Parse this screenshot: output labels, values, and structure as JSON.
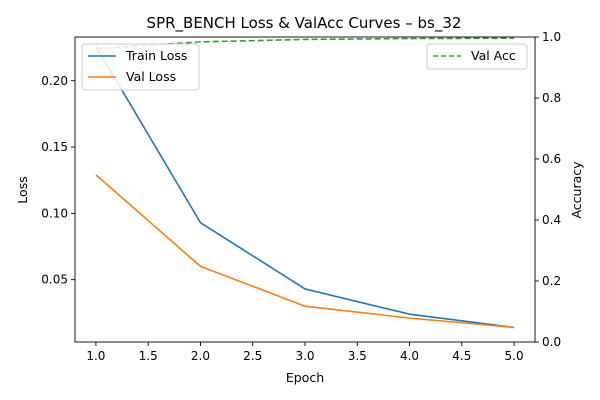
{
  "chart_data": {
    "type": "line",
    "title": "SPR_BENCH Loss & ValAcc Curves – bs_32",
    "xlabel": "Epoch",
    "ylabel_left": "Loss",
    "ylabel_right": "Accuracy",
    "x": [
      1.0,
      2.0,
      3.0,
      4.0,
      5.0
    ],
    "xlim": [
      0.8,
      5.2
    ],
    "ylim_left": [
      0.003,
      0.233
    ],
    "ylim_right": [
      0.0,
      1.0
    ],
    "xticks": [
      "1.0",
      "1.5",
      "2.0",
      "2.5",
      "3.0",
      "3.5",
      "4.0",
      "4.5",
      "5.0"
    ],
    "yticks_left": [
      "0.05",
      "0.10",
      "0.15",
      "0.20"
    ],
    "yticks_right": [
      "0.0",
      "0.2",
      "0.4",
      "0.6",
      "0.8",
      "1.0"
    ],
    "series": [
      {
        "name": "Train Loss",
        "axis": "left",
        "color": "#1f77b4",
        "style": "solid",
        "values": [
          0.226,
          0.093,
          0.043,
          0.024,
          0.014
        ]
      },
      {
        "name": "Val Loss",
        "axis": "left",
        "color": "#ff7f0e",
        "style": "solid",
        "values": [
          0.129,
          0.06,
          0.03,
          0.021,
          0.014
        ]
      },
      {
        "name": "Val Acc",
        "axis": "right",
        "color": "#2ca02c",
        "style": "dashed",
        "values": [
          0.962,
          0.984,
          0.992,
          0.995,
          0.996
        ]
      }
    ],
    "legend_left": "upper-left",
    "legend_right": "upper-right",
    "grid": false
  }
}
